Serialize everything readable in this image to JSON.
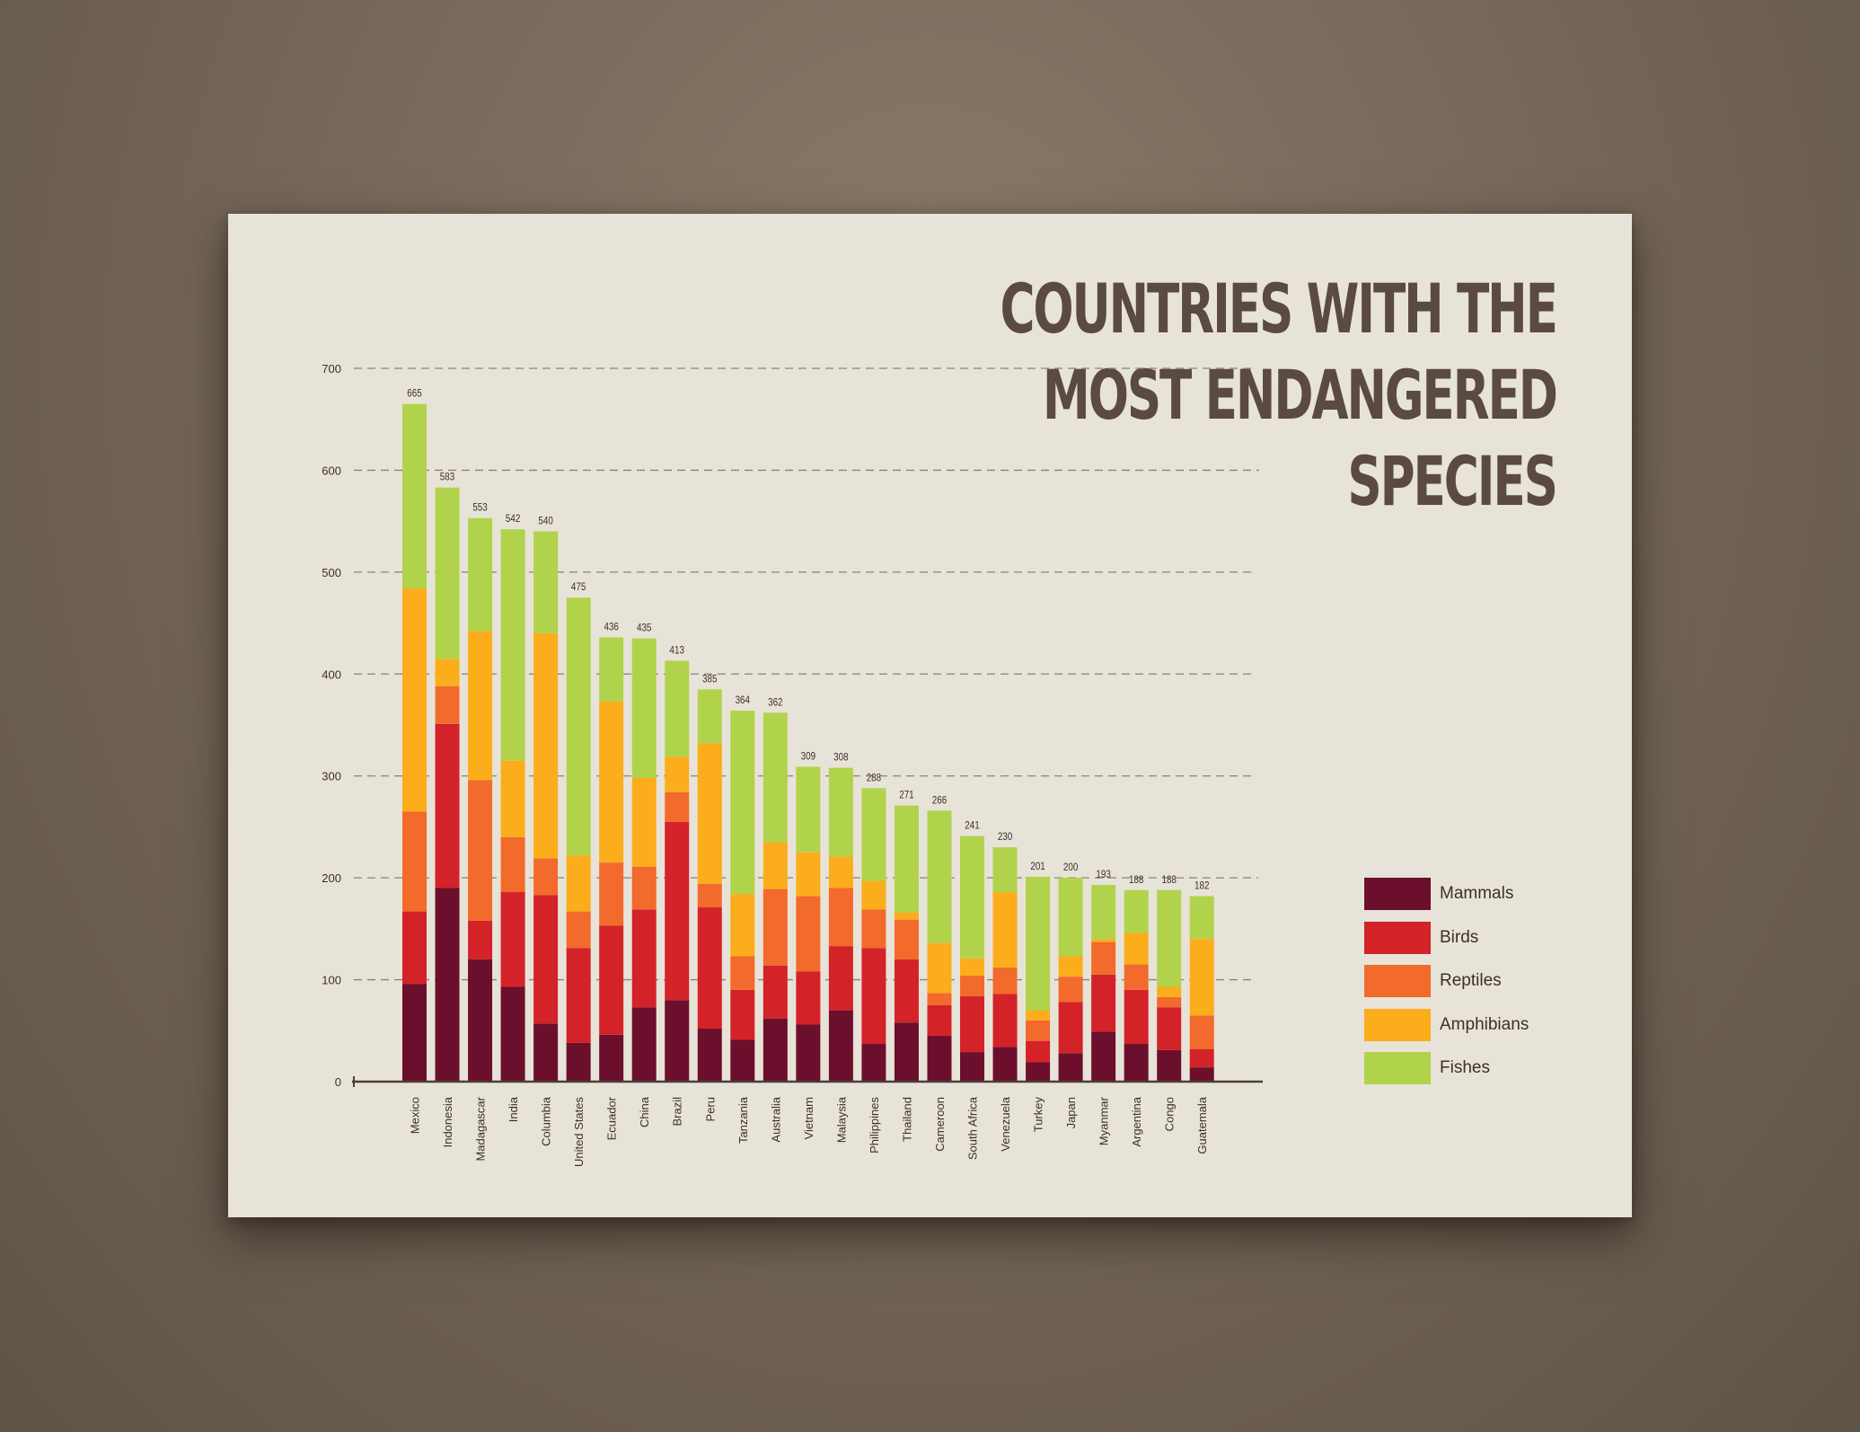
{
  "colors": {
    "Mammals": "#6b0f2c",
    "Birds": "#d42229",
    "Reptiles": "#f26a2c",
    "Amphibians": "#fbad1c",
    "Fishes": "#b1d34b",
    "gridline": "#8b8178",
    "axis": "#4a3f38",
    "text": "#3b2f2a"
  },
  "chart_data": {
    "type": "bar",
    "stacked": true,
    "title": "COUNTRIES WITH THE MOST ENDANGERED SPECIES",
    "title_lines": [
      "COUNTRIES WITH THE",
      "MOST ENDANGERED",
      "SPECIES"
    ],
    "xlabel": "",
    "ylabel": "",
    "ylim": [
      0,
      700
    ],
    "yticks": [
      0,
      100,
      200,
      300,
      400,
      500,
      600,
      700
    ],
    "grid": true,
    "legend_position": "right",
    "categories": [
      "Mexico",
      "Indonesia",
      "Madagascar",
      "India",
      "Columbia",
      "United States",
      "Ecuador",
      "China",
      "Brazil",
      "Peru",
      "Tanzania",
      "Australia",
      "Vietnam",
      "Malaysia",
      "Philippines",
      "Thailand",
      "Cameroon",
      "South Africa",
      "Venezuela",
      "Turkey",
      "Japan",
      "Myanmar",
      "Argentina",
      "Congo",
      "Guatemala"
    ],
    "totals": [
      665,
      583,
      553,
      542,
      540,
      475,
      436,
      435,
      413,
      385,
      364,
      362,
      309,
      308,
      288,
      271,
      266,
      241,
      230,
      201,
      200,
      193,
      188,
      188,
      182
    ],
    "series": [
      {
        "name": "Mammals",
        "values": [
          96,
          190,
          120,
          93,
          57,
          38,
          46,
          73,
          80,
          52,
          41,
          62,
          56,
          70,
          37,
          58,
          45,
          29,
          34,
          19,
          28,
          49,
          37,
          31,
          14
        ]
      },
      {
        "name": "Birds",
        "values": [
          71,
          161,
          38,
          93,
          126,
          93,
          107,
          96,
          175,
          119,
          49,
          52,
          52,
          63,
          94,
          62,
          30,
          55,
          52,
          21,
          50,
          56,
          53,
          42,
          18
        ]
      },
      {
        "name": "Reptiles",
        "values": [
          98,
          37,
          138,
          54,
          36,
          36,
          62,
          42,
          29,
          23,
          33,
          75,
          74,
          57,
          38,
          39,
          12,
          20,
          26,
          20,
          25,
          32,
          25,
          10,
          33
        ]
      },
      {
        "name": "Amphibians",
        "values": [
          219,
          27,
          146,
          75,
          221,
          55,
          158,
          87,
          35,
          138,
          61,
          46,
          43,
          31,
          28,
          7,
          49,
          17,
          74,
          10,
          20,
          3,
          31,
          10,
          75
        ]
      },
      {
        "name": "Fishes",
        "values": [
          181,
          168,
          111,
          227,
          100,
          253,
          63,
          137,
          94,
          53,
          180,
          127,
          84,
          87,
          91,
          105,
          130,
          120,
          44,
          131,
          77,
          53,
          42,
          95,
          42
        ]
      }
    ]
  }
}
